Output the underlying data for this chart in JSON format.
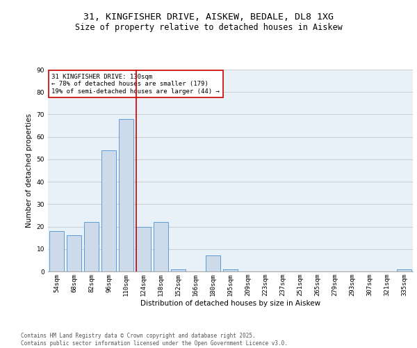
{
  "title_line1": "31, KINGFISHER DRIVE, AISKEW, BEDALE, DL8 1XG",
  "title_line2": "Size of property relative to detached houses in Aiskew",
  "xlabel": "Distribution of detached houses by size in Aiskew",
  "ylabel": "Number of detached properties",
  "categories": [
    "54sqm",
    "68sqm",
    "82sqm",
    "96sqm",
    "110sqm",
    "124sqm",
    "138sqm",
    "152sqm",
    "166sqm",
    "180sqm",
    "195sqm",
    "209sqm",
    "223sqm",
    "237sqm",
    "251sqm",
    "265sqm",
    "279sqm",
    "293sqm",
    "307sqm",
    "321sqm",
    "335sqm"
  ],
  "values": [
    18,
    16,
    22,
    54,
    68,
    20,
    22,
    1,
    0,
    7,
    1,
    0,
    0,
    0,
    0,
    0,
    0,
    0,
    0,
    0,
    1
  ],
  "bar_color": "#ccdaea",
  "bar_edge_color": "#5b9bd5",
  "grid_color": "#cccccc",
  "background_color": "#e8f0f8",
  "vline_x_index": 5,
  "vline_color": "#cc0000",
  "annotation_text": "31 KINGFISHER DRIVE: 130sqm\n← 78% of detached houses are smaller (179)\n19% of semi-detached houses are larger (44) →",
  "annotation_box_color": "#ffffff",
  "annotation_box_edge_color": "#cc0000",
  "ylim": [
    0,
    90
  ],
  "yticks": [
    0,
    10,
    20,
    30,
    40,
    50,
    60,
    70,
    80,
    90
  ],
  "footer_line1": "Contains HM Land Registry data © Crown copyright and database right 2025.",
  "footer_line2": "Contains public sector information licensed under the Open Government Licence v3.0.",
  "title_fontsize": 9.5,
  "subtitle_fontsize": 8.5,
  "axis_label_fontsize": 7.5,
  "tick_fontsize": 6.5,
  "annotation_fontsize": 6.5,
  "footer_fontsize": 5.5
}
